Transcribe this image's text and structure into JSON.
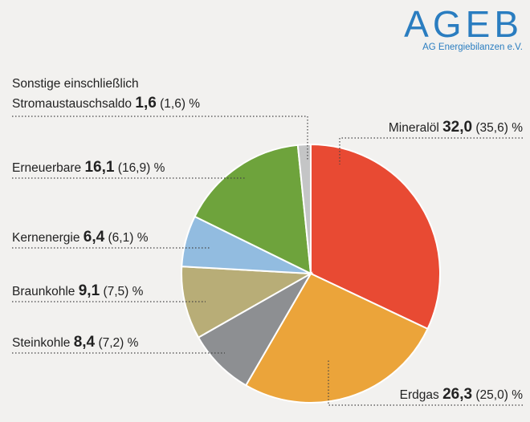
{
  "logo": {
    "main": "AGEB",
    "sub": "AG Energiebilanzen e.V."
  },
  "chart_data": {
    "type": "pie",
    "title": "",
    "unit": "%",
    "slices": [
      {
        "key": "mineraloel",
        "name": "Mineralöl",
        "value": 32.0,
        "value_text": "32,0",
        "prev_text": "(35,6)",
        "color": "#e84a33"
      },
      {
        "key": "erdgas",
        "name": "Erdgas",
        "value": 26.3,
        "value_text": "26,3",
        "prev_text": "(25,0)",
        "color": "#eba43a"
      },
      {
        "key": "steinkohle",
        "name": "Steinkohle",
        "value": 8.4,
        "value_text": "8,4",
        "prev_text": "(7,2)",
        "color": "#8d8f92"
      },
      {
        "key": "braunkohle",
        "name": "Braunkohle",
        "value": 9.1,
        "value_text": "9,1",
        "prev_text": "(7,5)",
        "color": "#b8ad77"
      },
      {
        "key": "kernenergie",
        "name": "Kernenergie",
        "value": 6.4,
        "value_text": "6,4",
        "prev_text": "(6,1)",
        "color": "#92bce0"
      },
      {
        "key": "erneuerbare",
        "name": "Erneuerbare",
        "value": 16.1,
        "value_text": "16,1",
        "prev_text": "(16,9)",
        "color": "#6ea33c"
      },
      {
        "key": "sonstige",
        "name_line1": "Sonstige einschließlich",
        "name": "Stromaustauschsaldo",
        "value": 1.6,
        "value_text": "1,6",
        "prev_text": "(1,6)",
        "color": "#c4c5c6"
      }
    ]
  }
}
